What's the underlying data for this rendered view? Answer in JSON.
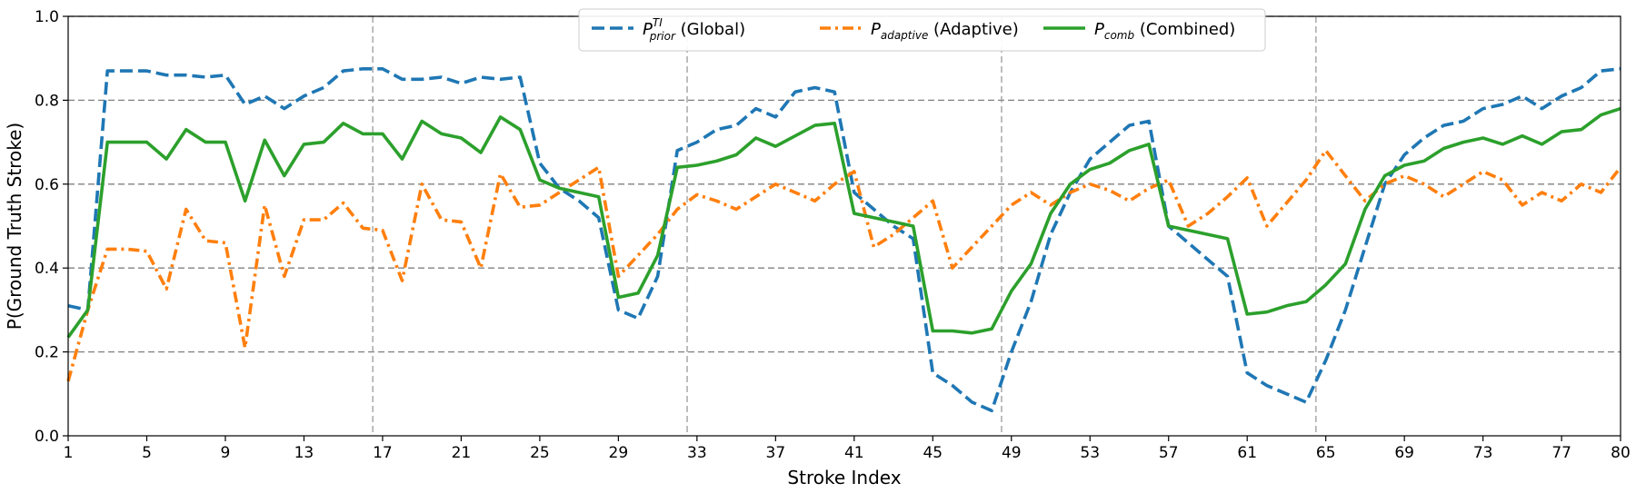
{
  "chart_data": {
    "type": "line",
    "xlabel": "Stroke Index",
    "ylabel": "P(Ground Truth Stroke)",
    "xlim": [
      1,
      80
    ],
    "ylim": [
      0.0,
      1.0
    ],
    "xticks": [
      1,
      5,
      9,
      13,
      17,
      21,
      25,
      29,
      33,
      37,
      41,
      45,
      49,
      53,
      57,
      61,
      65,
      69,
      73,
      77,
      80
    ],
    "yticks": [
      0.0,
      0.2,
      0.4,
      0.6,
      0.8,
      1.0
    ],
    "ytick_labels": [
      "0.0",
      "0.2",
      "0.4",
      "0.6",
      "0.8",
      "1.0"
    ],
    "horizontal_grid": [
      0.2,
      0.4,
      0.6,
      0.8,
      1.0
    ],
    "vertical_markers": [
      16.5,
      32.5,
      48.5,
      64.5
    ],
    "legend_position": "top-center",
    "x": [
      1,
      2,
      3,
      4,
      5,
      6,
      7,
      8,
      9,
      10,
      11,
      12,
      13,
      14,
      15,
      16,
      17,
      18,
      19,
      20,
      21,
      22,
      23,
      24,
      25,
      26,
      27,
      28,
      29,
      30,
      31,
      32,
      33,
      34,
      35,
      36,
      37,
      38,
      39,
      40,
      41,
      42,
      43,
      44,
      45,
      46,
      47,
      48,
      49,
      50,
      51,
      52,
      53,
      54,
      55,
      56,
      57,
      58,
      59,
      60,
      61,
      62,
      63,
      64,
      65,
      66,
      67,
      68,
      69,
      70,
      71,
      72,
      73,
      74,
      75,
      76,
      77,
      78,
      79,
      80
    ],
    "series": [
      {
        "name_main": "P",
        "name_sup": "TI",
        "name_sub": "prior",
        "name_suffix": " (Global)",
        "color": "#1f77b4",
        "style": "dashed",
        "values": [
          0.31,
          0.3,
          0.87,
          0.87,
          0.87,
          0.86,
          0.86,
          0.855,
          0.86,
          0.79,
          0.81,
          0.78,
          0.81,
          0.83,
          0.87,
          0.875,
          0.875,
          0.85,
          0.85,
          0.855,
          0.84,
          0.855,
          0.85,
          0.855,
          0.65,
          0.59,
          0.56,
          0.52,
          0.3,
          0.28,
          0.38,
          0.68,
          0.7,
          0.73,
          0.74,
          0.78,
          0.76,
          0.82,
          0.83,
          0.82,
          0.58,
          0.54,
          0.5,
          0.47,
          0.15,
          0.12,
          0.08,
          0.06,
          0.2,
          0.32,
          0.48,
          0.58,
          0.66,
          0.7,
          0.74,
          0.75,
          0.5,
          0.46,
          0.42,
          0.38,
          0.15,
          0.12,
          0.1,
          0.08,
          0.18,
          0.3,
          0.45,
          0.6,
          0.67,
          0.71,
          0.74,
          0.75,
          0.78,
          0.79,
          0.81,
          0.78,
          0.81,
          0.83,
          0.87,
          0.875
        ]
      },
      {
        "name_main": "P",
        "name_sup": "",
        "name_sub": "adaptive",
        "name_suffix": " (Adaptive)",
        "color": "#ff7f0e",
        "style": "dashdot",
        "values": [
          0.13,
          0.3,
          0.445,
          0.445,
          0.44,
          0.35,
          0.54,
          0.465,
          0.46,
          0.21,
          0.55,
          0.38,
          0.515,
          0.515,
          0.555,
          0.495,
          0.49,
          0.37,
          0.6,
          0.515,
          0.51,
          0.4,
          0.625,
          0.545,
          0.55,
          0.58,
          0.61,
          0.64,
          0.38,
          0.43,
          0.48,
          0.54,
          0.575,
          0.56,
          0.54,
          0.57,
          0.6,
          0.58,
          0.56,
          0.6,
          0.63,
          0.45,
          0.48,
          0.52,
          0.56,
          0.4,
          0.45,
          0.5,
          0.55,
          0.58,
          0.55,
          0.58,
          0.6,
          0.585,
          0.56,
          0.59,
          0.61,
          0.5,
          0.53,
          0.57,
          0.615,
          0.5,
          0.555,
          0.61,
          0.68,
          0.62,
          0.56,
          0.6,
          0.62,
          0.6,
          0.57,
          0.6,
          0.63,
          0.61,
          0.55,
          0.58,
          0.56,
          0.6,
          0.58,
          0.64
        ]
      },
      {
        "name_main": "P",
        "name_sup": "",
        "name_sub": "comb",
        "name_suffix": " (Combined)",
        "color": "#2ca02c",
        "style": "solid",
        "values": [
          0.235,
          0.3,
          0.7,
          0.7,
          0.7,
          0.66,
          0.73,
          0.7,
          0.7,
          0.56,
          0.705,
          0.62,
          0.695,
          0.7,
          0.745,
          0.72,
          0.72,
          0.66,
          0.75,
          0.72,
          0.71,
          0.675,
          0.76,
          0.73,
          0.61,
          0.59,
          0.58,
          0.57,
          0.33,
          0.34,
          0.43,
          0.64,
          0.645,
          0.655,
          0.67,
          0.71,
          0.69,
          0.715,
          0.74,
          0.745,
          0.53,
          0.52,
          0.51,
          0.5,
          0.25,
          0.25,
          0.245,
          0.255,
          0.345,
          0.41,
          0.53,
          0.6,
          0.635,
          0.65,
          0.68,
          0.695,
          0.5,
          0.49,
          0.48,
          0.47,
          0.29,
          0.295,
          0.31,
          0.32,
          0.36,
          0.41,
          0.54,
          0.62,
          0.645,
          0.655,
          0.685,
          0.7,
          0.71,
          0.695,
          0.715,
          0.695,
          0.725,
          0.73,
          0.765,
          0.78
        ]
      }
    ]
  }
}
